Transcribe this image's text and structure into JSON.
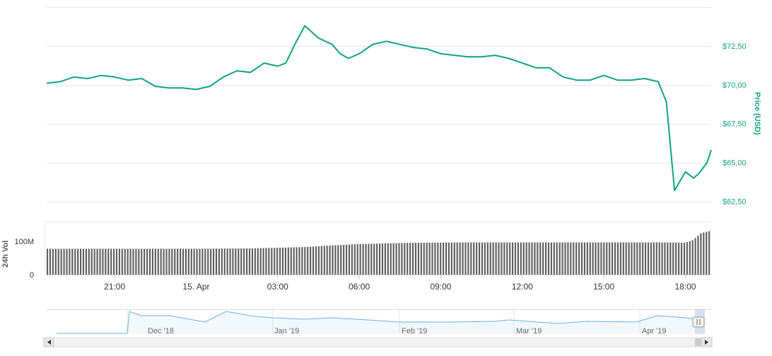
{
  "chart_data": {
    "type": "line",
    "title": "",
    "price_axis": {
      "label": "Price (USD)",
      "ticks": [
        "$62,50",
        "$65,00",
        "$67,50",
        "$70,00",
        "$72,50"
      ],
      "tick_values": [
        62.5,
        65.0,
        67.5,
        70.0,
        72.5
      ],
      "range": [
        61.25,
        75.0
      ]
    },
    "volume_axis": {
      "label": "24h Vol",
      "ticks": [
        "0",
        "100M"
      ],
      "tick_values": [
        0,
        100
      ]
    },
    "x_axis": {
      "ticks": [
        "21:00",
        "15. Apr",
        "03:00",
        "06:00",
        "09:00",
        "12:00",
        "15:00",
        "18:00"
      ],
      "tick_hours": [
        21,
        24,
        27,
        30,
        33,
        36,
        39,
        42
      ]
    },
    "series": [
      {
        "name": "Price",
        "color": "#10a37f",
        "x_hours": [
          18.5,
          19.0,
          19.5,
          20.0,
          20.5,
          21.0,
          21.5,
          22.0,
          22.5,
          23.0,
          23.5,
          24.0,
          24.5,
          25.0,
          25.5,
          26.0,
          26.5,
          27.0,
          27.3,
          27.6,
          28.0,
          28.5,
          29.0,
          29.3,
          29.6,
          30.0,
          30.5,
          31.0,
          31.5,
          32.0,
          32.5,
          33.0,
          33.5,
          34.0,
          34.5,
          35.0,
          35.5,
          36.0,
          36.5,
          37.0,
          37.5,
          38.0,
          38.5,
          39.0,
          39.5,
          40.0,
          40.5,
          41.0,
          41.3,
          41.6,
          42.0,
          42.3,
          42.5,
          42.8,
          42.95
        ],
        "y": [
          70.1,
          70.2,
          70.5,
          70.4,
          70.6,
          70.5,
          70.3,
          70.4,
          69.9,
          69.8,
          69.8,
          69.7,
          69.9,
          70.5,
          70.9,
          70.8,
          71.4,
          71.2,
          71.4,
          72.5,
          73.8,
          73.0,
          72.6,
          72.0,
          71.7,
          72.0,
          72.6,
          72.8,
          72.6,
          72.4,
          72.3,
          72.0,
          71.9,
          71.8,
          71.8,
          71.9,
          71.7,
          71.4,
          71.1,
          71.1,
          70.5,
          70.3,
          70.3,
          70.6,
          70.3,
          70.3,
          70.4,
          70.2,
          68.9,
          63.2,
          64.4,
          64.0,
          64.3,
          65.0,
          65.8
        ]
      },
      {
        "name": "24h Vol",
        "color": "#5f5f5f",
        "x_hours": [
          18.5,
          20.0,
          22.0,
          24.0,
          26.0,
          27.0,
          28.0,
          29.0,
          30.0,
          31.0,
          32.0,
          34.0,
          36.0,
          38.0,
          40.0,
          41.5,
          42.0,
          42.3,
          42.6,
          42.95
        ],
        "y": [
          78,
          78,
          78,
          78,
          79,
          81,
          83,
          88,
          92,
          94,
          96,
          97,
          97,
          97,
          97,
          97,
          96,
          104,
          125,
          132
        ]
      }
    ],
    "navigator": {
      "labels": [
        "Dec '18",
        "Jan '19",
        "Feb '19",
        "Mar '19",
        "Apr '19"
      ]
    }
  }
}
